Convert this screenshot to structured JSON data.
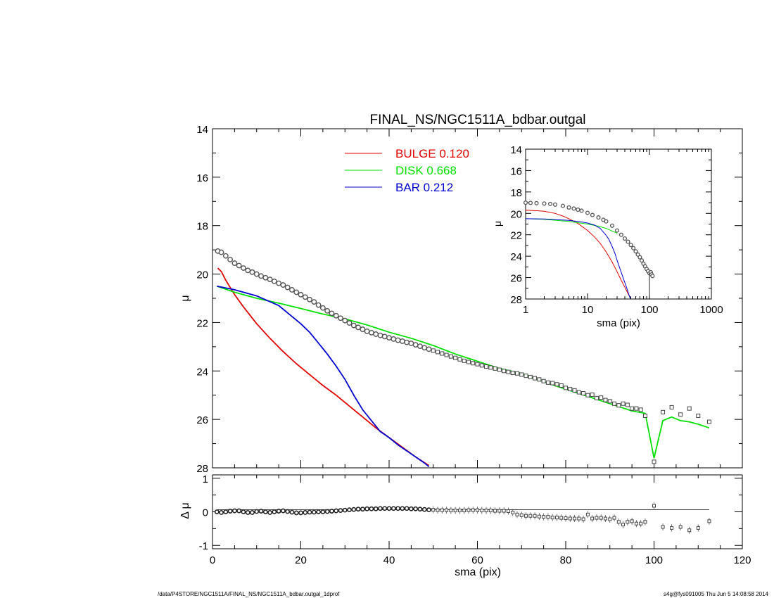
{
  "chart_data": [
    {
      "type": "scatter",
      "title": "FINAL_NS/NGC1511A_bdbar.outgal",
      "ylabel": "μ",
      "xlim": [
        0,
        120
      ],
      "ylim": [
        28,
        14
      ],
      "y_reversed": true,
      "yticks": [
        "14",
        "16",
        "18",
        "20",
        "22",
        "24",
        "26",
        "28"
      ],
      "legend": {
        "placement": "top-center",
        "entries": [
          {
            "name": "BULGE  0.120",
            "color": "#e00000"
          },
          {
            "name": "DISK  0.668",
            "color": "#00e000"
          },
          {
            "name": "BAR  0.212",
            "color": "#0000d0"
          }
        ]
      },
      "data_points": {
        "x": [
          1.2,
          2,
          3,
          4,
          5,
          6,
          7,
          8,
          9,
          10,
          11,
          12,
          13,
          14,
          15,
          16,
          17,
          18,
          19,
          20,
          21,
          22,
          23,
          24,
          25,
          26,
          27,
          28,
          29,
          30,
          31,
          32,
          33,
          34,
          35,
          36,
          37,
          38,
          39,
          40,
          41,
          42,
          43,
          44,
          45,
          46,
          47,
          48,
          49,
          50,
          51,
          52,
          53,
          54,
          55,
          56,
          57,
          58,
          59,
          60,
          61,
          62,
          63,
          64,
          65,
          66,
          67,
          68,
          69,
          70,
          71,
          72,
          73,
          74,
          75,
          76,
          77,
          78,
          79,
          80,
          81,
          82,
          83,
          84,
          85,
          86,
          87,
          88,
          89,
          90,
          91,
          92,
          93,
          94,
          95,
          96,
          97,
          98,
          100,
          102,
          104,
          106,
          108,
          110,
          112.5
        ],
        "y": [
          19.05,
          19.1,
          19.25,
          19.4,
          19.55,
          19.65,
          19.75,
          19.85,
          19.92,
          20.0,
          20.08,
          20.15,
          20.22,
          20.3,
          20.38,
          20.45,
          20.55,
          20.65,
          20.75,
          20.85,
          20.95,
          21.05,
          21.15,
          21.28,
          21.4,
          21.52,
          21.62,
          21.72,
          21.82,
          21.92,
          22.02,
          22.12,
          22.2,
          22.28,
          22.36,
          22.42,
          22.48,
          22.53,
          22.58,
          22.63,
          22.68,
          22.73,
          22.77,
          22.82,
          22.86,
          22.92,
          22.98,
          23.04,
          23.1,
          23.16,
          23.22,
          23.28,
          23.34,
          23.4,
          23.46,
          23.52,
          23.58,
          23.63,
          23.68,
          23.72,
          23.77,
          23.82,
          23.86,
          23.9,
          23.95,
          24.0,
          24.04,
          24.08,
          24.1,
          24.15,
          24.2,
          24.25,
          24.3,
          24.35,
          24.42,
          24.48,
          24.5,
          24.55,
          24.6,
          24.7,
          24.75,
          24.8,
          24.88,
          24.92,
          25.0,
          24.98,
          25.12,
          25.1,
          25.2,
          25.25,
          25.35,
          25.42,
          25.35,
          25.4,
          25.55,
          25.55,
          25.6,
          25.85,
          27.75,
          25.7,
          25.5,
          25.8,
          25.55,
          25.85,
          26.1
        ]
      },
      "series": [
        {
          "name": "BULGE  0.120",
          "color": "#e00000",
          "x": [
            1.2,
            2,
            3,
            5,
            7,
            10,
            13,
            16,
            19,
            22,
            25,
            28,
            31,
            34,
            37,
            40,
            43,
            46,
            49
          ],
          "y": [
            19.75,
            19.9,
            20.25,
            20.85,
            21.35,
            22.05,
            22.65,
            23.2,
            23.7,
            24.15,
            24.6,
            25.0,
            25.45,
            25.9,
            26.35,
            26.75,
            27.15,
            27.55,
            27.9
          ]
        },
        {
          "name": "DISK  0.668",
          "color": "#00e000",
          "x": [
            1,
            5,
            10,
            15,
            20,
            25,
            30,
            35,
            40,
            45,
            50,
            55,
            60,
            65,
            70,
            75,
            80,
            85,
            90,
            95,
            98,
            100,
            102,
            104,
            106,
            108,
            110,
            112.5
          ],
          "y": [
            20.5,
            20.75,
            21.0,
            21.2,
            21.42,
            21.65,
            21.85,
            22.1,
            22.4,
            22.65,
            22.95,
            23.3,
            23.6,
            23.9,
            24.1,
            24.45,
            24.75,
            25.05,
            25.35,
            25.65,
            25.75,
            27.6,
            26.05,
            25.9,
            26.05,
            26.1,
            26.2,
            26.35
          ]
        },
        {
          "name": "BAR  0.212",
          "color": "#0000d0",
          "x": [
            1,
            5,
            10,
            15,
            18,
            20,
            22,
            24,
            26,
            28,
            30,
            32,
            34,
            36,
            38,
            40,
            42,
            44,
            46,
            48,
            49
          ],
          "y": [
            20.5,
            20.65,
            20.9,
            21.3,
            21.75,
            22.05,
            22.4,
            22.85,
            23.3,
            23.8,
            24.35,
            25.0,
            25.6,
            26.05,
            26.5,
            26.75,
            27.05,
            27.3,
            27.55,
            27.8,
            27.95
          ]
        }
      ]
    },
    {
      "type": "scatter",
      "xlabel": "sma (pix)",
      "ylabel": "Δ μ",
      "xlim": [
        0,
        120
      ],
      "ylim": [
        -1.1,
        1.1
      ],
      "xticks": [
        "0",
        "20",
        "40",
        "60",
        "80",
        "100",
        "120"
      ],
      "yticks": [
        "1",
        "0",
        "-1"
      ],
      "zero_line": 0,
      "data_points": {
        "x": [
          1,
          2,
          3,
          4,
          5,
          6,
          7,
          8,
          9,
          10,
          11,
          12,
          13,
          14,
          15,
          16,
          17,
          18,
          19,
          20,
          21,
          22,
          23,
          24,
          25,
          26,
          27,
          28,
          29,
          30,
          31,
          32,
          33,
          34,
          35,
          36,
          37,
          38,
          39,
          40,
          41,
          42,
          43,
          44,
          45,
          46,
          47,
          48,
          49,
          50,
          51,
          52,
          53,
          54,
          55,
          56,
          57,
          58,
          59,
          60,
          61,
          62,
          63,
          64,
          65,
          66,
          67,
          68,
          69,
          70,
          71,
          72,
          73,
          74,
          75,
          76,
          77,
          78,
          79,
          80,
          81,
          82,
          83,
          84,
          85,
          86,
          87,
          88,
          89,
          90,
          91,
          92,
          93,
          94,
          95,
          96,
          97,
          98,
          100,
          102,
          104,
          106,
          108,
          110,
          112.5
        ],
        "y": [
          0.0,
          -0.02,
          0.0,
          0.02,
          0.03,
          0.03,
          0.0,
          -0.02,
          -0.02,
          0.01,
          0.02,
          0.0,
          -0.02,
          0.0,
          0.02,
          0.03,
          0.01,
          -0.01,
          -0.03,
          -0.03,
          -0.02,
          -0.01,
          -0.01,
          0.0,
          0.0,
          0.01,
          0.02,
          0.03,
          0.04,
          0.05,
          0.06,
          0.07,
          0.08,
          0.08,
          0.09,
          0.09,
          0.09,
          0.1,
          0.1,
          0.1,
          0.1,
          0.1,
          0.1,
          0.1,
          0.09,
          0.09,
          0.08,
          0.07,
          0.06,
          0.06,
          0.05,
          0.05,
          0.05,
          0.04,
          0.04,
          0.04,
          0.04,
          0.05,
          0.05,
          0.05,
          0.04,
          0.04,
          0.04,
          0.03,
          0.03,
          0.03,
          0.02,
          -0.02,
          -0.08,
          -0.1,
          -0.12,
          -0.12,
          -0.12,
          -0.14,
          -0.15,
          -0.15,
          -0.17,
          -0.17,
          -0.18,
          -0.19,
          -0.2,
          -0.2,
          -0.2,
          -0.22,
          -0.08,
          -0.2,
          -0.18,
          -0.18,
          -0.2,
          -0.22,
          -0.18,
          -0.3,
          -0.38,
          -0.3,
          -0.28,
          -0.35,
          -0.35,
          -0.3,
          0.18,
          -0.45,
          -0.48,
          -0.45,
          -0.55,
          -0.48,
          -0.28
        ]
      }
    },
    {
      "type": "scatter",
      "xlabel": "sma (pix)",
      "ylabel": "μ",
      "x_scale": "log",
      "xlim": [
        1,
        1000
      ],
      "ylim": [
        28,
        14
      ],
      "y_reversed": true,
      "xticks": [
        "1",
        "10",
        "100",
        "1000"
      ],
      "yticks": [
        "14",
        "16",
        "18",
        "20",
        "22",
        "24",
        "26",
        "28"
      ],
      "data_points": {
        "x": [
          1,
          1.2,
          1.5,
          2,
          2.5,
          3,
          4,
          5,
          6,
          7,
          8,
          10,
          12,
          15,
          18,
          20,
          25,
          30,
          35,
          40,
          45,
          50,
          55,
          60,
          65,
          70,
          75,
          80,
          85,
          90,
          95,
          100,
          105,
          108,
          112
        ],
        "y": [
          19.0,
          19.02,
          19.05,
          19.08,
          19.12,
          19.18,
          19.3,
          19.45,
          19.55,
          19.65,
          19.75,
          19.95,
          20.15,
          20.38,
          20.6,
          20.75,
          21.15,
          21.6,
          22.0,
          22.35,
          22.65,
          22.95,
          23.25,
          23.55,
          23.85,
          24.1,
          24.4,
          24.7,
          24.95,
          25.2,
          25.4,
          25.6,
          25.5,
          25.7,
          25.85
        ]
      },
      "series": [
        {
          "name": "BULGE  0.120",
          "color": "#e00000",
          "x": [
            1,
            1.5,
            2,
            3,
            4,
            5,
            7,
            10,
            13,
            16,
            20,
            25,
            30,
            35,
            40,
            49
          ],
          "y": [
            19.7,
            19.75,
            19.8,
            20.0,
            20.25,
            20.5,
            20.95,
            21.6,
            22.2,
            22.8,
            23.6,
            24.55,
            25.45,
            26.25,
            26.9,
            27.9
          ]
        },
        {
          "name": "DISK  0.668",
          "color": "#00e000",
          "x": [
            1,
            2,
            5,
            10,
            15,
            20,
            25,
            30
          ],
          "y": [
            20.5,
            20.55,
            20.75,
            21.0,
            21.2,
            21.4,
            21.65,
            21.85
          ]
        },
        {
          "name": "BAR  0.212",
          "color": "#0000d0",
          "x": [
            1,
            2,
            5,
            8,
            10,
            13,
            16,
            18,
            20,
            22,
            25,
            28,
            30,
            34,
            38,
            42,
            46,
            49
          ],
          "y": [
            20.5,
            20.52,
            20.65,
            20.8,
            20.9,
            21.1,
            21.4,
            21.75,
            22.05,
            22.4,
            23.1,
            23.8,
            24.4,
            25.3,
            26.1,
            26.8,
            27.5,
            27.95
          ]
        }
      ]
    }
  ],
  "footer": {
    "path": "/data/P4STORE/NGC1511A/FINAL_NS/NGC1511A_bdbar.outgal_1dprof",
    "stamp": "s4g@fys091005  Thu Jun  5 14:08:58 2014"
  }
}
